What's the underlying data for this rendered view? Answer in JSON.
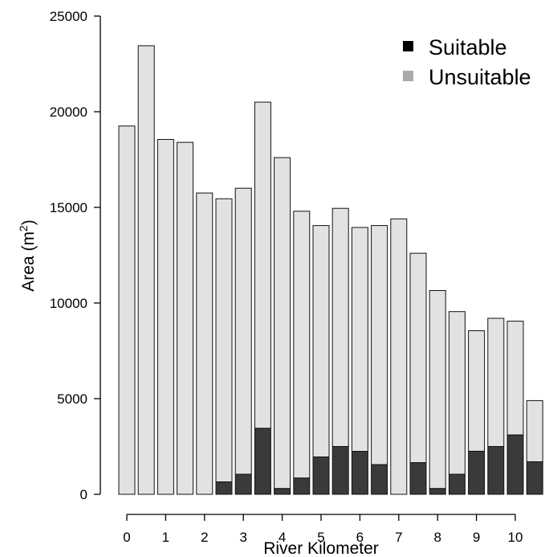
{
  "chart_data": {
    "type": "bar",
    "stacked": true,
    "title": "",
    "xlabel": "River Kilometer",
    "ylabel": "Area (m",
    "ylabel_superscript": "2",
    "ylabel_suffix": ")",
    "ylim": [
      0,
      25000
    ],
    "yticks": [
      0,
      5000,
      10000,
      15000,
      20000,
      25000
    ],
    "x": [
      0,
      0.5,
      1,
      1.5,
      2,
      2.5,
      3,
      3.5,
      4,
      4.5,
      5,
      5.5,
      6,
      6.5,
      7,
      7.5,
      8,
      8.5,
      9,
      9.5,
      10,
      10.5
    ],
    "xticks": [
      0,
      1,
      2,
      3,
      4,
      5,
      6,
      7,
      8,
      9,
      10
    ],
    "legend_position": "top-right",
    "grid": false,
    "series": [
      {
        "name": "Suitable",
        "color": "#3a3a3a",
        "legend_color": "#000000",
        "values": [
          0,
          0,
          0,
          0,
          0,
          650,
          1050,
          3450,
          300,
          850,
          1950,
          2500,
          2250,
          1550,
          0,
          1650,
          300,
          1050,
          2250,
          2500,
          3100,
          1700
        ]
      },
      {
        "name": "Unsuitable",
        "color": "#e2e2e2",
        "legend_color": "#aaaaaa",
        "totals": [
          19250,
          23450,
          18550,
          18400,
          15750,
          15450,
          16000,
          20500,
          17600,
          14800,
          14050,
          14950,
          13950,
          14050,
          14400,
          12600,
          10650,
          9550,
          8550,
          9200,
          9050,
          4900
        ]
      }
    ]
  }
}
